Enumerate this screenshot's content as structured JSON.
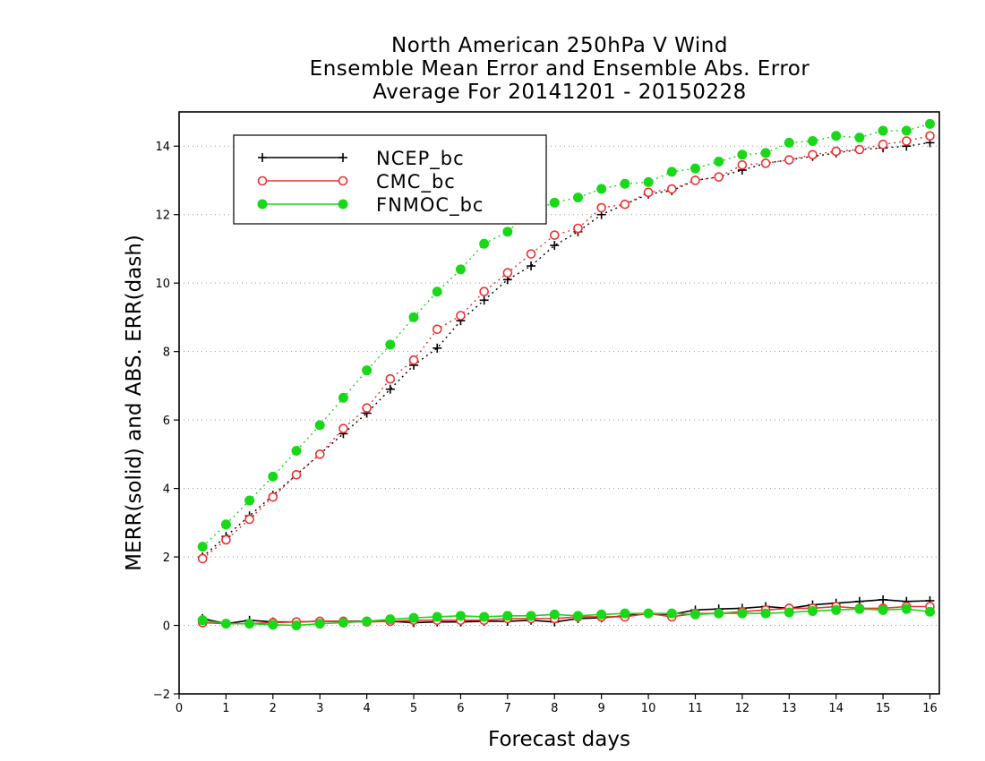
{
  "chart_data": {
    "type": "line",
    "title": [
      "North American 250hPa V Wind",
      "Ensemble Mean Error and Ensemble Abs. Error",
      "Average For 20141201 - 20150228"
    ],
    "xlabel": "Forecast days",
    "ylabel": "MERR(solid) and ABS. ERR(dash)",
    "xlim": [
      0,
      16.2
    ],
    "ylim": [
      -2,
      15
    ],
    "xticks": [
      0,
      1,
      2,
      3,
      4,
      5,
      6,
      7,
      8,
      9,
      10,
      11,
      12,
      13,
      14,
      15,
      16
    ],
    "yticks": [
      -2,
      0,
      2,
      4,
      6,
      8,
      10,
      12,
      14
    ],
    "grid": "horizontal dotted",
    "legend_position": "top-left",
    "x": [
      0.5,
      1,
      1.5,
      2,
      2.5,
      3,
      3.5,
      4,
      4.5,
      5,
      5.5,
      6,
      6.5,
      7,
      7.5,
      8,
      8.5,
      9,
      9.5,
      10,
      10.5,
      11,
      11.5,
      12,
      12.5,
      13,
      13.5,
      14,
      14.5,
      15,
      15.5,
      16
    ],
    "series": [
      {
        "name": "NCEP_bc",
        "color": "#000000",
        "marker": "plus",
        "abs_err": [
          2.0,
          2.6,
          3.2,
          3.8,
          4.4,
          5.0,
          5.6,
          6.2,
          6.9,
          7.6,
          8.1,
          8.9,
          9.5,
          10.1,
          10.5,
          11.1,
          11.5,
          12.0,
          12.3,
          12.6,
          12.7,
          13.0,
          13.1,
          13.3,
          13.5,
          13.6,
          13.7,
          13.8,
          13.9,
          13.95,
          14.0,
          14.1
        ],
        "mean_err": [
          0.2,
          0.05,
          0.15,
          0.1,
          0.1,
          0.12,
          0.12,
          0.12,
          0.12,
          0.08,
          0.1,
          0.1,
          0.12,
          0.12,
          0.15,
          0.1,
          0.2,
          0.22,
          0.28,
          0.35,
          0.32,
          0.45,
          0.48,
          0.5,
          0.55,
          0.5,
          0.6,
          0.65,
          0.7,
          0.75,
          0.7,
          0.72
        ]
      },
      {
        "name": "CMC_bc",
        "color": "#f03030",
        "marker": "open-circle",
        "abs_err": [
          1.95,
          2.5,
          3.1,
          3.75,
          4.4,
          5.0,
          5.75,
          6.35,
          7.2,
          7.75,
          8.65,
          9.05,
          9.75,
          10.3,
          10.85,
          11.4,
          11.6,
          12.2,
          12.3,
          12.65,
          12.75,
          13.0,
          13.1,
          13.45,
          13.5,
          13.6,
          13.75,
          13.85,
          13.9,
          14.05,
          14.15,
          14.3
        ],
        "mean_err": [
          0.08,
          0.05,
          0.05,
          0.08,
          0.1,
          0.12,
          0.12,
          0.1,
          0.12,
          0.15,
          0.15,
          0.15,
          0.15,
          0.2,
          0.2,
          0.2,
          0.25,
          0.25,
          0.25,
          0.35,
          0.25,
          0.35,
          0.35,
          0.4,
          0.45,
          0.5,
          0.5,
          0.55,
          0.5,
          0.5,
          0.55,
          0.55
        ]
      },
      {
        "name": "FNMOC_bc",
        "color": "#18d818",
        "marker": "filled-circle",
        "abs_err": [
          2.3,
          2.95,
          3.65,
          4.35,
          5.1,
          5.85,
          6.65,
          7.45,
          8.2,
          9.0,
          9.75,
          10.4,
          11.15,
          11.5,
          12.1,
          12.35,
          12.5,
          12.75,
          12.9,
          12.95,
          13.25,
          13.35,
          13.55,
          13.75,
          13.8,
          14.1,
          14.15,
          14.3,
          14.25,
          14.45,
          14.45,
          14.65
        ],
        "mean_err": [
          0.15,
          0.05,
          0.05,
          0.02,
          0.0,
          0.05,
          0.08,
          0.12,
          0.18,
          0.22,
          0.25,
          0.28,
          0.25,
          0.28,
          0.28,
          0.32,
          0.28,
          0.32,
          0.35,
          0.35,
          0.35,
          0.32,
          0.35,
          0.35,
          0.35,
          0.38,
          0.42,
          0.45,
          0.48,
          0.45,
          0.48,
          0.4
        ]
      }
    ]
  }
}
